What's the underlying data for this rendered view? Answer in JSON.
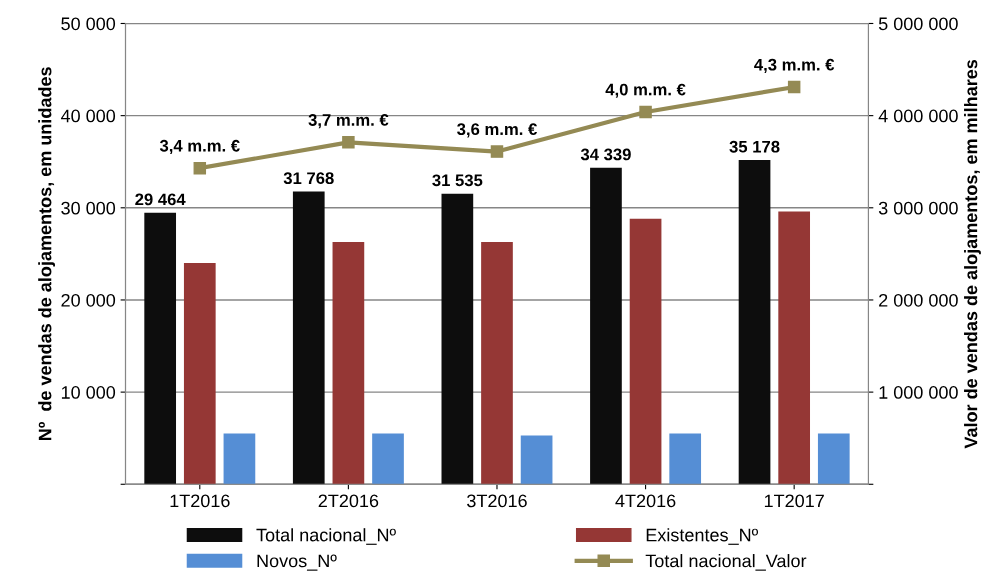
{
  "chart_data": {
    "type": "bar",
    "categories": [
      "1T2016",
      "2T2016",
      "3T2016",
      "4T2016",
      "1T2017"
    ],
    "series": [
      {
        "name": "Total nacional_Nº",
        "color": "#0d0d0d",
        "values": [
          29464,
          31768,
          31535,
          34339,
          35178
        ],
        "value_labels": [
          "29 464",
          "31 768",
          "31 535",
          "34 339",
          "35 178"
        ]
      },
      {
        "name": "Existentes_Nº",
        "color": "#953735",
        "values": [
          24000,
          26300,
          26300,
          28800,
          29600
        ]
      },
      {
        "name": "Novos_Nº",
        "color": "#558ed5",
        "values": [
          5500,
          5500,
          5300,
          5500,
          5500
        ]
      },
      {
        "name": "Total nacional_Valor",
        "type": "line",
        "axis": "y2",
        "color": "#948a54",
        "marker": "square",
        "values": [
          3430000,
          3710000,
          3610000,
          4040000,
          4310000
        ],
        "value_labels": [
          "3,4 m.m. €",
          "3,7 m.m. €",
          "3,6 m.m. €",
          "4,0 m.m. €",
          "4,3 m.m. €"
        ]
      }
    ],
    "ylabel": "Nº  de vendas de alojamentos, em unidades",
    "y2label": "Valor de vendas de alojamentos, em milhares",
    "ylim": [
      0,
      50000
    ],
    "yticks": [
      {
        "value": 0,
        "label": null
      },
      {
        "value": 10000,
        "label": "10 000"
      },
      {
        "value": 20000,
        "label": "20 000"
      },
      {
        "value": 30000,
        "label": "30 000"
      },
      {
        "value": 40000,
        "label": "40 000"
      },
      {
        "value": 50000,
        "label": "50 000"
      }
    ],
    "y2lim": [
      0,
      5000000
    ],
    "y2ticks": [
      {
        "value": 0,
        "label": null
      },
      {
        "value": 1000000,
        "label": "1 000 000"
      },
      {
        "value": 2000000,
        "label": "2 000 000"
      },
      {
        "value": 3000000,
        "label": "3 000 000"
      },
      {
        "value": 4000000,
        "label": "4 000 000"
      },
      {
        "value": 5000000,
        "label": "5 000 000"
      }
    ],
    "grid": "y",
    "legend": "bottom"
  }
}
